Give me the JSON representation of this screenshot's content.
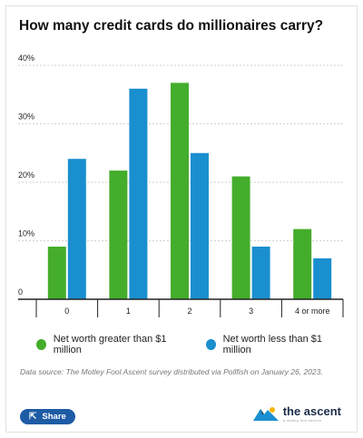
{
  "title": "How many credit cards do millionaires carry?",
  "chart_data": {
    "type": "bar",
    "categories": [
      "0",
      "1",
      "2",
      "3",
      "4 or more"
    ],
    "series": [
      {
        "name": "Net worth greater than $1 million",
        "color": "#44ad2c",
        "values": [
          9,
          22,
          37,
          21,
          12
        ]
      },
      {
        "name": "Net worth less than $1 million",
        "color": "#1a8fcf",
        "values": [
          24,
          36,
          25,
          9,
          7
        ]
      }
    ],
    "ylim": [
      0,
      40
    ],
    "yticks": [
      0,
      10,
      20,
      30,
      40
    ],
    "ytick_labels": [
      "0",
      "10%",
      "20%",
      "30%",
      "40%"
    ],
    "grid": true,
    "legend_position": "bottom"
  },
  "source": "Data source: The Motley Fool Ascent survey distributed via Pollfish on January 26, 2023.",
  "share_label": "Share",
  "brand": {
    "name": "the ascent",
    "tagline": "a motley fool service",
    "logo_icon": "ascent-mountain-logo-icon"
  },
  "colors": {
    "green": "#44ad2c",
    "blue": "#1a8fcf",
    "share_button": "#1d5ba5"
  }
}
